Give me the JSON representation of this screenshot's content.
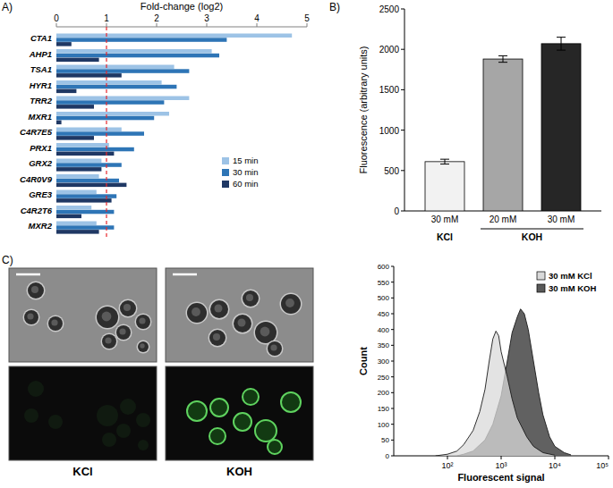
{
  "chart_data": [
    {
      "type": "bar",
      "orientation": "horizontal",
      "panel_label": "A)",
      "x_label": "Fold-change (log2)",
      "categories": [
        "CTA1",
        "AHP1",
        "TSA1",
        "HYR1",
        "TRR2",
        "MXR1",
        "C4R7E5",
        "PRX1",
        "GRX2",
        "C4R0V9",
        "GRE3",
        "C4R2T6",
        "MXR2"
      ],
      "series": [
        {
          "name": "15 min",
          "color": "#9dc3e6",
          "values": [
            4.7,
            3.1,
            2.35,
            2.1,
            2.65,
            2.25,
            1.3,
            1.05,
            0.9,
            0.85,
            0.8,
            0.7,
            0.8
          ]
        },
        {
          "name": "30 min",
          "color": "#2e75b6",
          "values": [
            3.4,
            3.25,
            2.65,
            2.4,
            2.15,
            1.95,
            1.75,
            1.55,
            1.3,
            1.25,
            1.2,
            1.15,
            1.15
          ]
        },
        {
          "name": "60 min",
          "color": "#1f3864",
          "values": [
            0.3,
            0.85,
            1.3,
            0.4,
            0.75,
            0.1,
            0.75,
            1.15,
            0.9,
            1.4,
            1.1,
            0.5,
            0.85
          ]
        }
      ],
      "xlim": [
        0,
        5
      ],
      "xticks": [
        0,
        1,
        2,
        3,
        4,
        5
      ],
      "reference_line": 1,
      "legend": "bottom-right"
    },
    {
      "type": "bar",
      "panel_label": "B)",
      "y_label": "Fluorescence (arbitrary units)",
      "categories": [
        "30 mM",
        "20 mM",
        "30 mM"
      ],
      "groups": [
        {
          "name": "KCl",
          "categories": [
            0
          ]
        },
        {
          "name": "KOH",
          "categories": [
            1,
            2
          ]
        }
      ],
      "values": [
        610,
        1880,
        2070
      ],
      "errors": [
        30,
        40,
        80
      ],
      "colors": [
        "#f2f2f2",
        "#a6a6a6",
        "#262626"
      ],
      "ylim": [
        0,
        2500
      ],
      "yticks": [
        0,
        500,
        1000,
        1500,
        2000,
        2500
      ]
    },
    {
      "type": "area",
      "panel_label": "C)",
      "x_label": "Fluorescent signal",
      "y_label": "Count",
      "log": "x",
      "series": [
        {
          "name": "30 mM KCl",
          "color": "#d9d9d9",
          "x": [
            60,
            100,
            150,
            200,
            300,
            400,
            500,
            600,
            700,
            800,
            900,
            1000,
            1300,
            1600,
            2000,
            3000,
            4000,
            6000,
            10000
          ],
          "values": [
            0,
            5,
            15,
            35,
            80,
            140,
            210,
            300,
            370,
            395,
            380,
            330,
            250,
            180,
            120,
            60,
            30,
            10,
            2
          ]
        },
        {
          "name": "30 mM KOH",
          "color": "#595959",
          "x": [
            150,
            200,
            300,
            500,
            700,
            1000,
            1300,
            1600,
            2000,
            2300,
            2700,
            3200,
            4000,
            5000,
            6000,
            8000,
            10000,
            15000,
            20000
          ],
          "values": [
            0,
            5,
            15,
            50,
            100,
            190,
            300,
            390,
            440,
            465,
            450,
            400,
            300,
            200,
            130,
            60,
            30,
            10,
            3
          ]
        }
      ],
      "xlim": [
        10,
        100000
      ],
      "xticks": [
        {
          "value": 100,
          "label": "10²"
        },
        {
          "value": 1000,
          "label": "10³"
        },
        {
          "value": 10000,
          "label": "10⁴"
        },
        {
          "value": 100000,
          "label": "10⁵"
        }
      ],
      "ylim": [
        0,
        600
      ],
      "yticks": [
        0,
        50,
        100,
        150,
        200,
        250,
        300,
        350,
        400,
        450,
        500,
        550,
        600
      ],
      "legend": "top-right"
    }
  ],
  "micrographs": {
    "labels": [
      "KCl",
      "KOH"
    ]
  }
}
